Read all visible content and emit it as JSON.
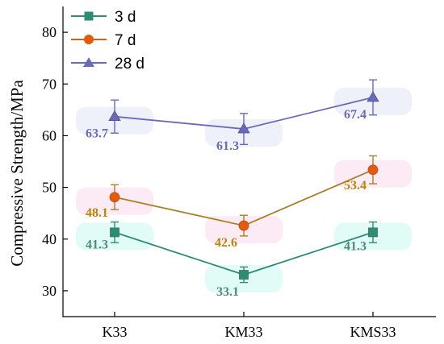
{
  "chart_data": {
    "type": "line",
    "categories": [
      "K33",
      "KM33",
      "KMS33"
    ],
    "ylabel": "Compressive Strength/MPa",
    "ylim": [
      25,
      85
    ],
    "yticks": [
      30,
      40,
      50,
      60,
      70,
      80
    ],
    "legend_position": "top-left",
    "series": [
      {
        "name": "3 d",
        "values": [
          41.3,
          33.1,
          41.3
        ],
        "errors": [
          2.0,
          1.5,
          2.0
        ],
        "color": "#2e8b74",
        "label_color": "#4e8b7a",
        "glow": "#dcfbf6",
        "marker": "square"
      },
      {
        "name": "7 d",
        "values": [
          48.1,
          42.6,
          53.4
        ],
        "errors": [
          2.4,
          2.0,
          2.7
        ],
        "color": "#e05a10",
        "label_color": "#b8860b",
        "line_color": "#a8802a",
        "glow": "#fbe8f3",
        "marker": "circle"
      },
      {
        "name": "28 d",
        "values": [
          63.7,
          61.3,
          67.4
        ],
        "errors": [
          3.2,
          3.0,
          3.4
        ],
        "color": "#6a6bb8",
        "label_color": "#6a6bb8",
        "glow": "#eceef9",
        "marker": "triangle"
      }
    ],
    "data_labels": [
      [
        "41.3",
        "33.1",
        "41.3"
      ],
      [
        "48.1",
        "42.6",
        "53.4"
      ],
      [
        "63.7",
        "61.3",
        "67.4"
      ]
    ]
  }
}
